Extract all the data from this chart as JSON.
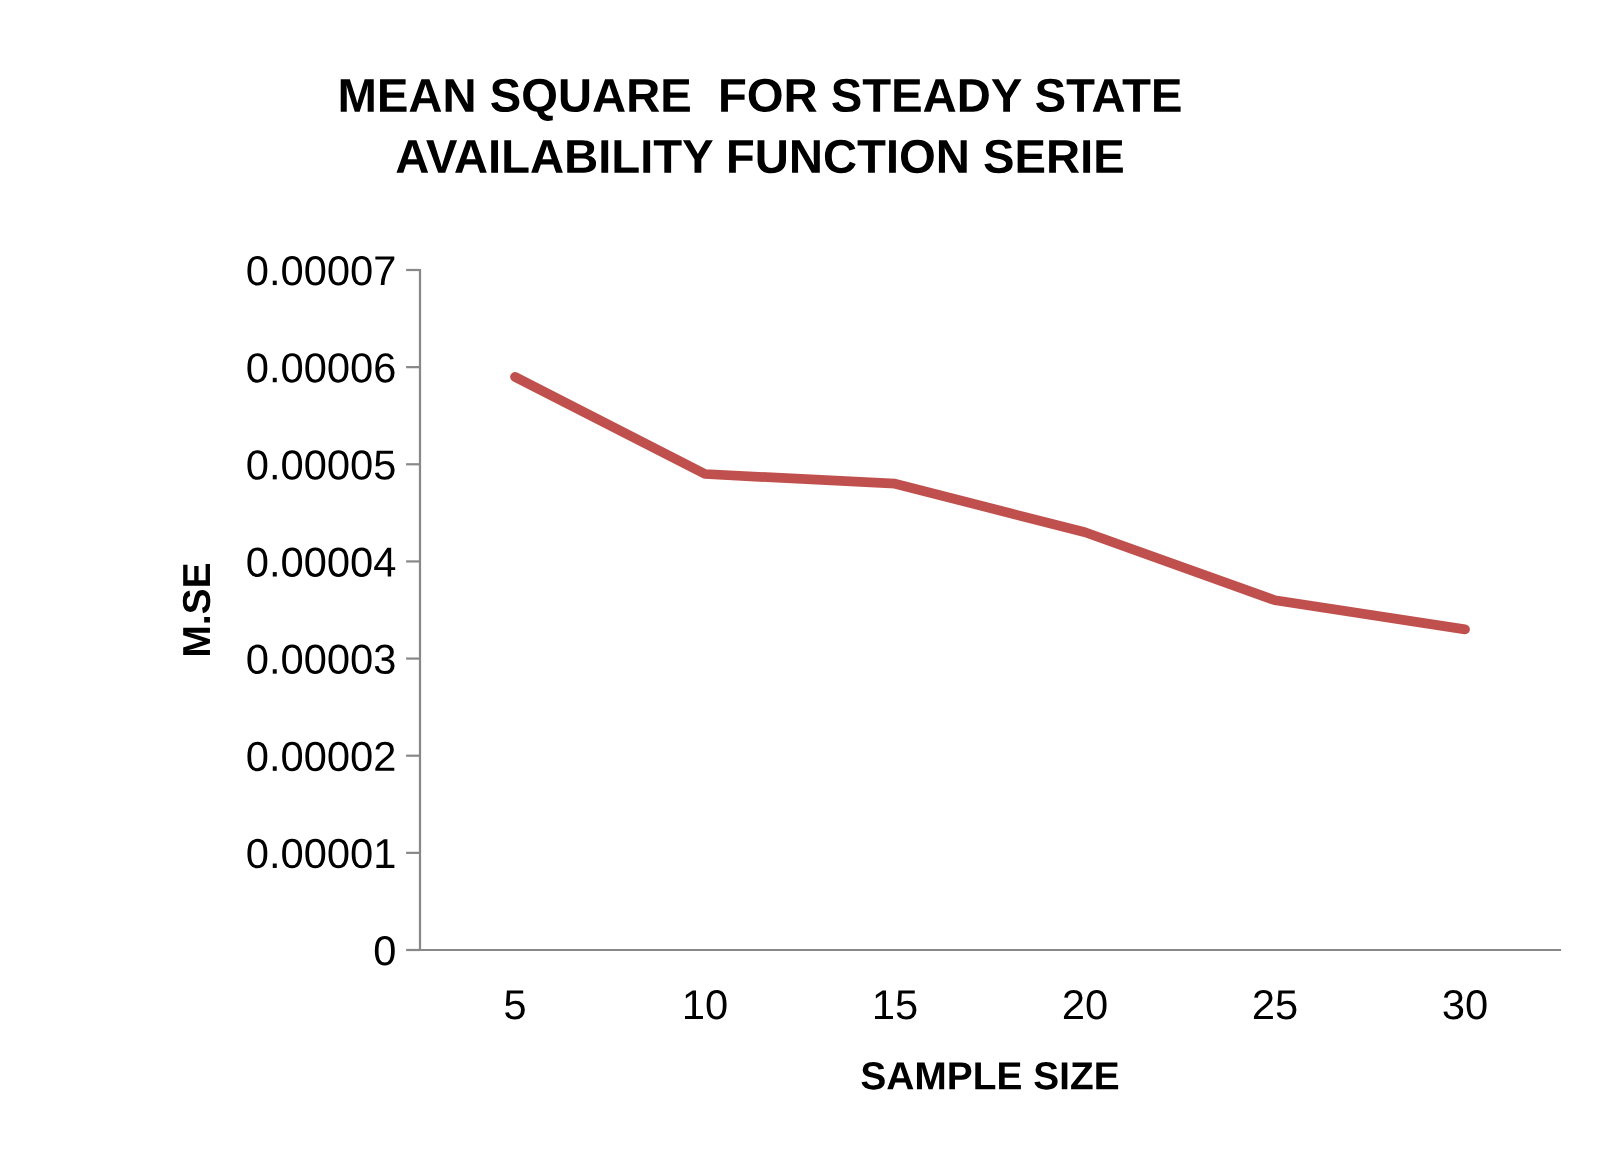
{
  "chart_data": {
    "type": "line",
    "title": "MEAN SQUARE  FOR STEADY STATE\nAVAILABILITY FUNCTION SERIE",
    "xlabel": "SAMPLE SIZE",
    "ylabel": "M.SE",
    "categories": [
      "5",
      "10",
      "15",
      "20",
      "25",
      "30"
    ],
    "series": [
      {
        "color": "#c0504d",
        "values": [
          5.9e-05,
          4.9e-05,
          4.8e-05,
          4.3e-05,
          3.6e-05,
          3.3e-05
        ]
      }
    ],
    "ylim": [
      0,
      7e-05
    ],
    "yticks": [
      {
        "value": 0,
        "label": "0"
      },
      {
        "value": 1e-05,
        "label": "0.00001"
      },
      {
        "value": 2e-05,
        "label": "0.00002"
      },
      {
        "value": 3e-05,
        "label": "0.00003"
      },
      {
        "value": 4e-05,
        "label": "0.00004"
      },
      {
        "value": 5e-05,
        "label": "0.00005"
      },
      {
        "value": 6e-05,
        "label": "0.00006"
      },
      {
        "value": 7e-05,
        "label": "0.00007"
      }
    ],
    "grid": false,
    "legend": false,
    "marker": "none",
    "line_style": "solid"
  }
}
